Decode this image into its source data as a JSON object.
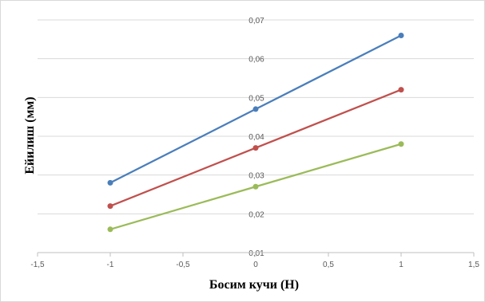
{
  "chart_data": {
    "type": "line",
    "title": "",
    "xlabel": "Босим кучи (Н)",
    "ylabel": "Ейилиш (мм)",
    "xlim": [
      -1.5,
      1.5
    ],
    "ylim": [
      0.01,
      0.07
    ],
    "x_ticks": [
      "-1,5",
      "-1",
      "-0,5",
      "0",
      "0,5",
      "1",
      "1,5"
    ],
    "y_ticks": [
      "0,01",
      "0,02",
      "0,03",
      "0,04",
      "0,05",
      "0,06",
      "0,07"
    ],
    "x": [
      -1,
      0,
      1
    ],
    "series": [
      {
        "color": "#4a7ebb",
        "values": [
          0.028,
          0.047,
          0.066
        ]
      },
      {
        "color": "#c0504d",
        "values": [
          0.022,
          0.037,
          0.052
        ]
      },
      {
        "color": "#9bbb59",
        "values": [
          0.016,
          0.027,
          0.038
        ]
      }
    ],
    "grid": true,
    "legend": "none"
  }
}
